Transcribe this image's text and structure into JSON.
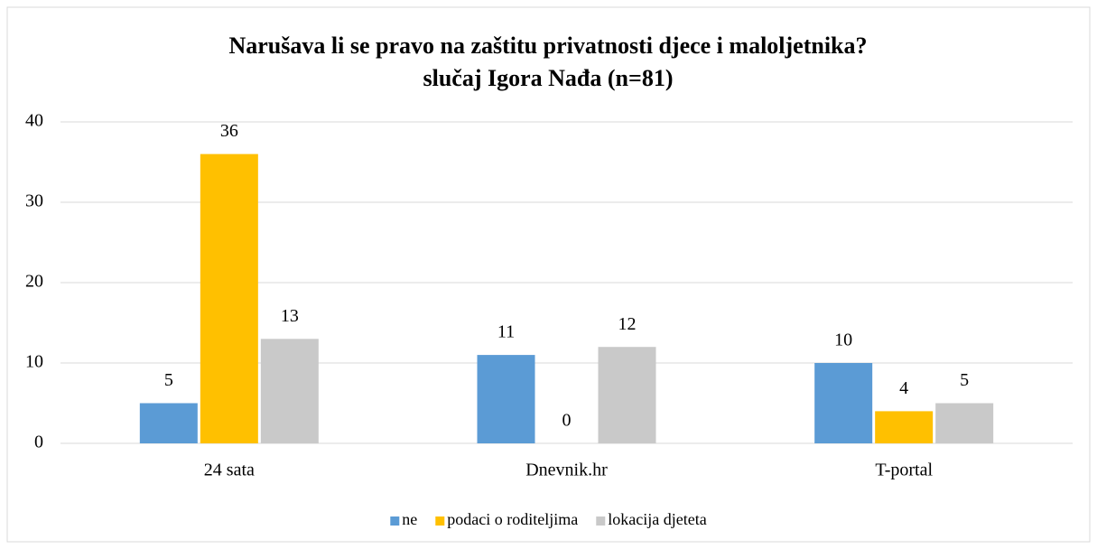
{
  "chart_data": {
    "type": "bar",
    "title": [
      "Narušava li se pravo na zaštitu privatnosti djece i maloljetnika?",
      "slučaj Igora Nađa (n=81)"
    ],
    "categories": [
      "24 sata",
      "Dnevnik.hr",
      "T-portal"
    ],
    "series": [
      {
        "name": "ne",
        "color": "#5b9bd5",
        "values": [
          5,
          11,
          10
        ]
      },
      {
        "name": "podaci o roditeljima",
        "color": "#ffc000",
        "values": [
          36,
          0,
          4
        ]
      },
      {
        "name": "lokacija djeteta",
        "color": "#c9c9c9",
        "values": [
          13,
          12,
          5
        ]
      }
    ],
    "ylim": [
      0,
      40
    ],
    "yticks": [
      0,
      10,
      20,
      30,
      40
    ],
    "grid": true,
    "legend": "bottom"
  }
}
